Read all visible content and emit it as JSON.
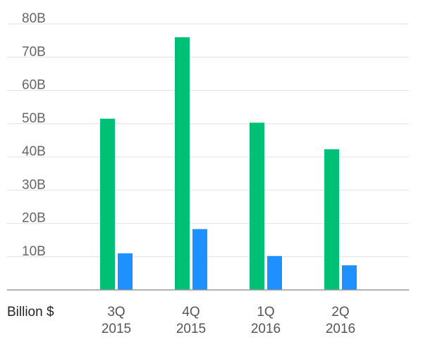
{
  "chart_data": {
    "type": "bar",
    "categories": [
      [
        "3Q",
        "2015"
      ],
      [
        "4Q",
        "2015"
      ],
      [
        "1Q",
        "2016"
      ],
      [
        "2Q",
        "2016"
      ]
    ],
    "series": [
      {
        "values": [
          51.5,
          76,
          50.3,
          42.3
        ],
        "color": "#00c075"
      },
      {
        "values": [
          11,
          18.3,
          10.2,
          7.4
        ],
        "color": "#1e90ff"
      }
    ],
    "ylim": [
      0,
      80
    ],
    "yticks": [
      {
        "value": 10,
        "label": "10B"
      },
      {
        "value": 20,
        "label": "20B"
      },
      {
        "value": 30,
        "label": "30B"
      },
      {
        "value": 40,
        "label": "40B"
      },
      {
        "value": 50,
        "label": "50B"
      },
      {
        "value": 60,
        "label": "60B"
      },
      {
        "value": 70,
        "label": "70B"
      },
      {
        "value": 80,
        "label": "80B"
      }
    ],
    "unit_label": "Billion $",
    "grid": true,
    "colors": {
      "grid": "#e6e6e6",
      "axis": "#9a9a9a"
    }
  }
}
